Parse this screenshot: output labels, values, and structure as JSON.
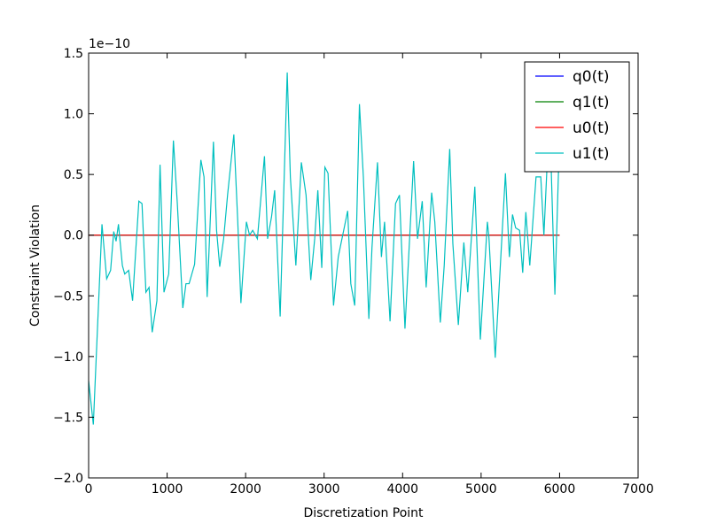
{
  "chart_data": {
    "type": "line",
    "xlabel": "Discretization Point",
    "ylabel": "Constraint Violation",
    "y_offset_label": "1e−10",
    "xlim": [
      0,
      7000
    ],
    "xticks": [
      0,
      1000,
      2000,
      3000,
      4000,
      5000,
      6000,
      7000
    ],
    "ylim": [
      -2.0,
      1.5
    ],
    "yticks": [
      {
        "value": -2.0,
        "label": "−2.0"
      },
      {
        "value": -1.5,
        "label": "−1.5"
      },
      {
        "value": -1.0,
        "label": "−1.0"
      },
      {
        "value": -0.5,
        "label": "−0.5"
      },
      {
        "value": 0.0,
        "label": "0.0"
      },
      {
        "value": 0.5,
        "label": "0.5"
      },
      {
        "value": 1.0,
        "label": "1.0"
      },
      {
        "value": 1.5,
        "label": "1.5"
      }
    ],
    "legend": "upper right",
    "series": [
      {
        "name": "q0(t)",
        "color": "#0000ff",
        "x": [
          0,
          6000
        ],
        "values": [
          0,
          0
        ]
      },
      {
        "name": "q1(t)",
        "color": "#008000",
        "x": [
          0,
          6000
        ],
        "values": [
          0,
          0
        ]
      },
      {
        "name": "u0(t)",
        "color": "#ff0000",
        "x": [
          0,
          6000
        ],
        "values": [
          0,
          0
        ]
      },
      {
        "name": "u1(t)",
        "color": "#00bfbf",
        "x": [
          0,
          60,
          170,
          230,
          280,
          320,
          350,
          380,
          430,
          460,
          510,
          560,
          640,
          680,
          730,
          770,
          810,
          870,
          910,
          960,
          1020,
          1080,
          1130,
          1200,
          1240,
          1280,
          1350,
          1430,
          1470,
          1510,
          1590,
          1630,
          1670,
          1720,
          1770,
          1850,
          1900,
          1940,
          2010,
          2050,
          2090,
          2150,
          2240,
          2280,
          2330,
          2370,
          2440,
          2530,
          2570,
          2640,
          2710,
          2770,
          2830,
          2880,
          2920,
          2970,
          3010,
          3050,
          3120,
          3180,
          3300,
          3340,
          3390,
          3450,
          3500,
          3570,
          3610,
          3680,
          3730,
          3770,
          3840,
          3910,
          3960,
          4030,
          4140,
          4190,
          4250,
          4300,
          4370,
          4410,
          4480,
          4530,
          4600,
          4640,
          4710,
          4780,
          4830,
          4920,
          4940,
          4990,
          5080,
          5100,
          5180,
          5310,
          5360,
          5400,
          5440,
          5490,
          5530,
          5570,
          5620,
          5700,
          5760,
          5800,
          5840,
          5870,
          5940,
          6000
        ],
        "values": [
          -1.2,
          -1.56,
          0.09,
          -0.36,
          -0.29,
          0.03,
          -0.05,
          0.09,
          -0.25,
          -0.32,
          -0.29,
          -0.54,
          0.28,
          0.26,
          -0.47,
          -0.43,
          -0.8,
          -0.54,
          0.58,
          -0.47,
          -0.32,
          0.78,
          0.26,
          -0.6,
          -0.4,
          -0.4,
          -0.24,
          0.62,
          0.48,
          -0.51,
          0.77,
          0.04,
          -0.26,
          -0.03,
          0.33,
          0.83,
          0.11,
          -0.56,
          0.11,
          0.0,
          0.04,
          -0.03,
          0.65,
          -0.03,
          0.15,
          0.37,
          -0.67,
          1.34,
          0.48,
          -0.25,
          0.6,
          0.33,
          -0.37,
          -0.03,
          0.37,
          -0.27,
          0.56,
          0.51,
          -0.58,
          -0.18,
          0.2,
          -0.4,
          -0.58,
          1.08,
          0.48,
          -0.69,
          -0.1,
          0.6,
          -0.18,
          0.11,
          -0.71,
          0.26,
          0.33,
          -0.77,
          0.61,
          -0.03,
          0.28,
          -0.43,
          0.35,
          0.11,
          -0.72,
          -0.25,
          0.71,
          -0.07,
          -0.74,
          -0.06,
          -0.47,
          0.4,
          0.04,
          -0.86,
          0.11,
          -0.02,
          -1.01,
          0.51,
          -0.18,
          0.17,
          0.06,
          0.04,
          -0.31,
          0.19,
          -0.25,
          0.48,
          0.48,
          0.0,
          0.57,
          1.06,
          -0.49,
          0.84
        ]
      }
    ]
  }
}
